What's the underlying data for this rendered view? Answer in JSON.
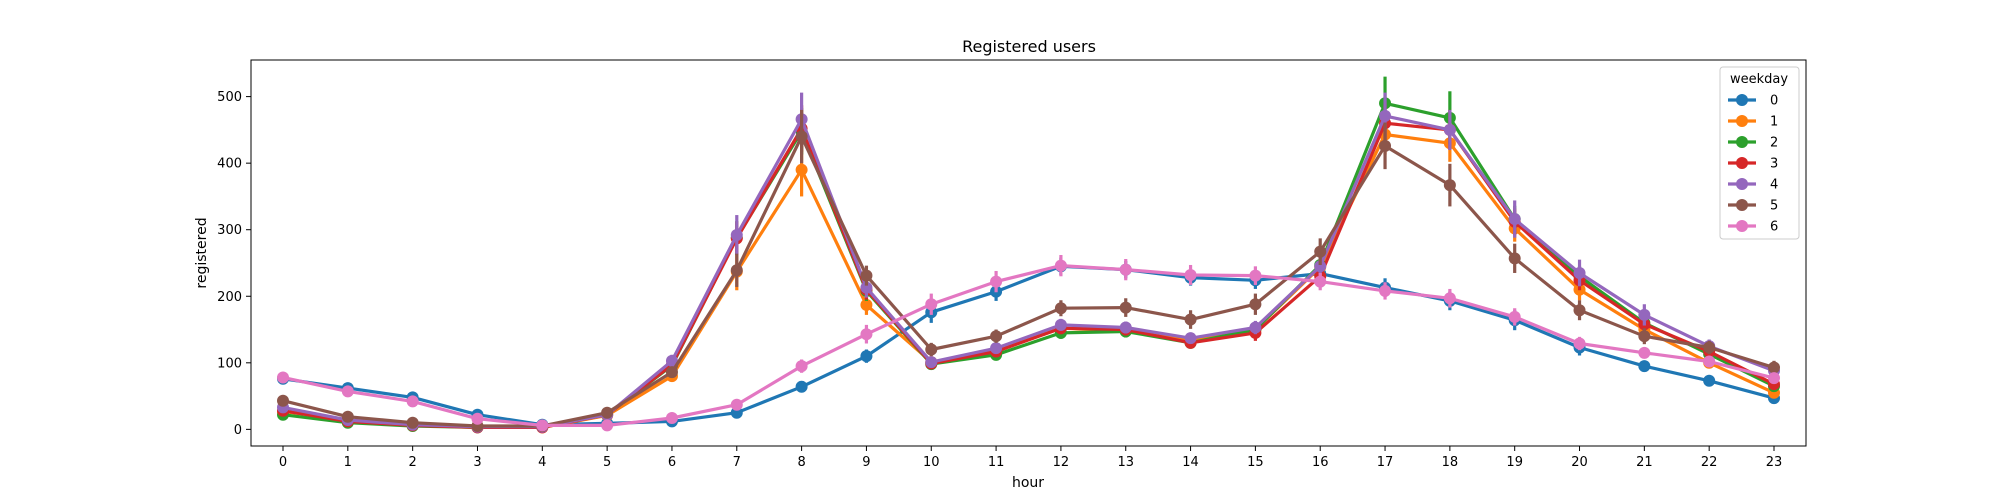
{
  "chart_data": {
    "type": "line",
    "title": "Registered users",
    "xlabel": "hour",
    "ylabel": "registered",
    "categories": [
      "0",
      "1",
      "2",
      "3",
      "4",
      "5",
      "6",
      "7",
      "8",
      "9",
      "10",
      "11",
      "12",
      "13",
      "14",
      "15",
      "16",
      "17",
      "18",
      "19",
      "20",
      "21",
      "22",
      "23"
    ],
    "ylim": [
      -25,
      555
    ],
    "yticks": [
      0,
      100,
      200,
      300,
      400,
      500
    ],
    "grid": false,
    "legend": {
      "title": "weekday",
      "placement": "top-right"
    },
    "series": [
      {
        "name": "0",
        "color": "#1f77b4",
        "values": [
          76,
          62,
          48,
          22,
          7,
          9,
          12,
          25,
          64,
          110,
          176,
          207,
          245,
          240,
          228,
          224,
          234,
          213,
          193,
          164,
          123,
          95,
          73,
          47
        ],
        "errors": [
          6,
          5,
          5,
          4,
          2,
          2,
          3,
          5,
          6,
          10,
          16,
          14,
          13,
          13,
          12,
          13,
          12,
          14,
          14,
          15,
          12,
          8,
          6,
          5
        ]
      },
      {
        "name": "1",
        "color": "#ff7f0e",
        "values": [
          27,
          14,
          7,
          4,
          3,
          21,
          80,
          237,
          390,
          187,
          101,
          117,
          152,
          148,
          133,
          150,
          244,
          443,
          430,
          302,
          210,
          150,
          100,
          55
        ],
        "errors": [
          4,
          3,
          2,
          1,
          1,
          3,
          8,
          28,
          40,
          15,
          8,
          8,
          9,
          10,
          8,
          10,
          15,
          30,
          28,
          20,
          16,
          12,
          8,
          6
        ]
      },
      {
        "name": "2",
        "color": "#2ca02c",
        "values": [
          22,
          10,
          5,
          3,
          4,
          22,
          96,
          288,
          448,
          208,
          98,
          112,
          145,
          147,
          130,
          150,
          247,
          490,
          468,
          316,
          230,
          160,
          113,
          65
        ],
        "errors": [
          3,
          2,
          1,
          1,
          1,
          3,
          8,
          25,
          35,
          15,
          8,
          8,
          9,
          9,
          8,
          10,
          16,
          40,
          40,
          20,
          15,
          12,
          9,
          7
        ]
      },
      {
        "name": "3",
        "color": "#d62728",
        "values": [
          28,
          12,
          6,
          3,
          3,
          22,
          97,
          287,
          452,
          210,
          99,
          117,
          152,
          150,
          130,
          145,
          230,
          460,
          450,
          312,
          224,
          158,
          117,
          68
        ],
        "errors": [
          4,
          2,
          1,
          1,
          1,
          3,
          8,
          25,
          35,
          15,
          8,
          8,
          9,
          9,
          8,
          12,
          15,
          30,
          30,
          20,
          15,
          12,
          9,
          7
        ]
      },
      {
        "name": "4",
        "color": "#9467bd",
        "values": [
          33,
          14,
          7,
          4,
          4,
          22,
          103,
          292,
          466,
          213,
          101,
          122,
          157,
          153,
          137,
          153,
          245,
          471,
          450,
          316,
          235,
          172,
          125,
          88
        ],
        "errors": [
          4,
          3,
          2,
          1,
          1,
          3,
          9,
          30,
          40,
          15,
          8,
          8,
          9,
          9,
          8,
          10,
          15,
          35,
          30,
          28,
          20,
          16,
          10,
          10
        ]
      },
      {
        "name": "5",
        "color": "#8c564b",
        "values": [
          43,
          19,
          10,
          5,
          5,
          25,
          86,
          239,
          440,
          231,
          120,
          140,
          182,
          183,
          165,
          188,
          267,
          426,
          367,
          257,
          179,
          140,
          123,
          93
        ],
        "errors": [
          6,
          3,
          2,
          1,
          1,
          3,
          8,
          25,
          40,
          15,
          10,
          10,
          12,
          14,
          14,
          16,
          20,
          35,
          32,
          22,
          15,
          12,
          10,
          10
        ]
      },
      {
        "name": "6",
        "color": "#e377c2",
        "values": [
          78,
          57,
          42,
          16,
          6,
          6,
          17,
          37,
          95,
          143,
          188,
          222,
          246,
          240,
          232,
          231,
          222,
          208,
          197,
          169,
          129,
          115,
          102,
          77
        ],
        "errors": [
          7,
          6,
          5,
          3,
          2,
          2,
          3,
          5,
          10,
          14,
          16,
          16,
          16,
          16,
          15,
          14,
          13,
          13,
          14,
          13,
          10,
          8,
          7,
          6
        ]
      }
    ]
  }
}
